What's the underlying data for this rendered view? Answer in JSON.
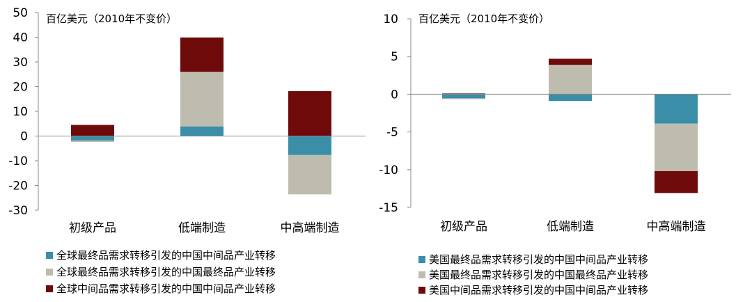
{
  "chart_data": [
    {
      "type": "bar",
      "stacked": true,
      "unit_label": "百亿美元（2010年不变价）",
      "categories": [
        "初级产品",
        "低端制造",
        "中高端制造"
      ],
      "ylim": [
        -30,
        50
      ],
      "yticks": [
        "50",
        "40",
        "30",
        "20",
        "10",
        "0",
        "-10",
        "-20",
        "-30"
      ],
      "ytick_values": [
        50,
        40,
        30,
        20,
        10,
        0,
        -10,
        -20,
        -30
      ],
      "grid": false,
      "legend_position": "bottom",
      "colors": [
        "#3a8ea8",
        "#bdbcae",
        "#6e0a0a"
      ],
      "series": [
        {
          "name": "全球最终品需求转移引发的中国中间品产业转移",
          "values": [
            -1.8,
            3.9,
            -7.7
          ]
        },
        {
          "name": "全球最终品需求转移引发的中国最终品产业转移",
          "values": [
            -0.6,
            22.1,
            -15.9
          ]
        },
        {
          "name": "全球中间品需求转移引发的中国中间品产业转移",
          "values": [
            4.5,
            13.9,
            18.2
          ]
        }
      ]
    },
    {
      "type": "bar",
      "stacked": true,
      "unit_label": "百亿美元（2010年不变价）",
      "categories": [
        "初级产品",
        "低端制造",
        "中高端制造"
      ],
      "ylim": [
        -15,
        10
      ],
      "yticks": [
        "10",
        "5",
        "0",
        "-5",
        "-10",
        "-15"
      ],
      "ytick_values": [
        10,
        5,
        0,
        -5,
        -10,
        -15
      ],
      "grid": false,
      "legend_position": "bottom",
      "colors": [
        "#3a8ea8",
        "#bdbcae",
        "#6e0a0a"
      ],
      "series": [
        {
          "name": "美国最终品需求转移引发的中国中间品产业转移",
          "values": [
            -0.55,
            -0.9,
            -3.9
          ]
        },
        {
          "name": "美国最终品需求转移引发的中国最终品产业转移",
          "values": [
            -0.1,
            3.9,
            -6.3
          ]
        },
        {
          "name": "美国中间品需求转移引发的中国中间品产业转移",
          "values": [
            0.1,
            0.8,
            -2.9
          ]
        }
      ]
    }
  ]
}
